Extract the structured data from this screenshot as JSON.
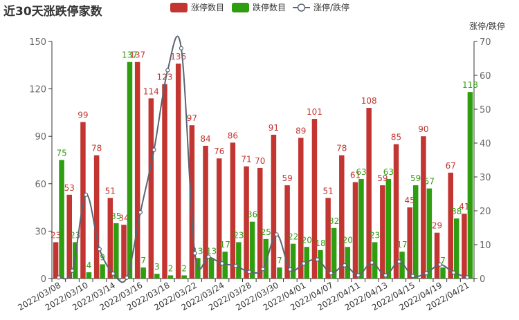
{
  "chart_data": {
    "type": "bar",
    "title": "近30天涨跌停家数",
    "categories": [
      "2022/03/08",
      "2022/03/09",
      "2022/03/10",
      "2022/03/11",
      "2022/03/14",
      "2022/03/15",
      "2022/03/16",
      "2022/03/17",
      "2022/03/18",
      "2022/03/21",
      "2022/03/22",
      "2022/03/23",
      "2022/03/24",
      "2022/03/25",
      "2022/03/28",
      "2022/03/29",
      "2022/03/30",
      "2022/03/31",
      "2022/04/01",
      "2022/04/06",
      "2022/04/07",
      "2022/04/08",
      "2022/04/11",
      "2022/04/12",
      "2022/04/13",
      "2022/04/14",
      "2022/04/15",
      "2022/04/18",
      "2022/04/19",
      "2022/04/20",
      "2022/04/21"
    ],
    "x_tick_labels_shown": [
      "2022/03/08",
      "2022/03/10",
      "2022/03/14",
      "2022/03/16",
      "2022/03/18",
      "2022/03/22",
      "2022/03/24",
      "2022/03/28",
      "2022/03/30",
      "2022/04/01",
      "2022/04/07",
      "2022/04/11",
      "2022/04/13",
      "2022/04/15",
      "2022/04/19",
      "2022/04/21"
    ],
    "series": [
      {
        "name": "涨停数目",
        "color": "#c23531",
        "type": "bar",
        "values": [
          23,
          53,
          99,
          78,
          51,
          34,
          137,
          114,
          123,
          136,
          97,
          84,
          76,
          86,
          71,
          70,
          91,
          59,
          89,
          101,
          51,
          78,
          61,
          108,
          59,
          85,
          45,
          90,
          29,
          67,
          41
        ]
      },
      {
        "name": "跌停数目",
        "color": "#2f9d10",
        "type": "bar",
        "values": [
          75,
          23,
          4,
          9,
          35,
          137,
          7,
          3,
          2,
          2,
          13,
          13,
          17,
          23,
          36,
          25,
          7,
          22,
          20,
          18,
          32,
          20,
          63,
          23,
          63,
          17,
          59,
          57,
          7,
          38,
          118
        ]
      },
      {
        "name": "涨停/跌停",
        "color": "#5c6373",
        "type": "line",
        "axis": "right",
        "values": [
          0.31,
          2.3,
          24.75,
          8.67,
          1.46,
          0.25,
          19.57,
          38,
          61.5,
          68,
          7.46,
          6.46,
          4.47,
          3.74,
          1.97,
          2.8,
          13,
          2.68,
          4.45,
          5.61,
          1.59,
          3.9,
          0.97,
          4.7,
          0.94,
          5,
          0.76,
          1.58,
          4.14,
          1.76,
          0.35
        ]
      }
    ],
    "left_axis": {
      "ylim": [
        0,
        150
      ],
      "ticks": [
        0,
        30,
        60,
        90,
        120,
        150
      ]
    },
    "right_axis": {
      "name": "涨停/跌停",
      "ylim": [
        0,
        70
      ],
      "ticks": [
        0,
        10,
        20,
        30,
        40,
        50,
        60,
        70
      ]
    },
    "legend": {
      "position": "top-center",
      "items": [
        "涨停数目",
        "跌停数目",
        "涨停/跌停"
      ]
    },
    "grid": false
  }
}
